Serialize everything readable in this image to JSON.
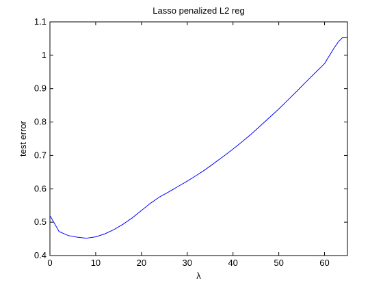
{
  "chart_data": {
    "type": "line",
    "title": "Lasso penalized L2 reg",
    "xlabel": "λ",
    "ylabel": "test error",
    "xlim": [
      0,
      65
    ],
    "ylim": [
      0.4,
      1.1
    ],
    "xticks": [
      0,
      10,
      20,
      30,
      40,
      50,
      60
    ],
    "yticks": [
      0.4,
      0.5,
      0.6,
      0.7,
      0.8,
      0.9,
      1,
      1.1
    ],
    "xtick_labels": [
      "0",
      "10",
      "20",
      "30",
      "40",
      "50",
      "60"
    ],
    "ytick_labels": [
      "0.4",
      "0.5",
      "0.6",
      "0.7",
      "0.8",
      "0.9",
      "1",
      "1.1"
    ],
    "grid": false,
    "line_color": "#0000ff",
    "axes_color": "#000000",
    "series": [
      {
        "x": [
          0,
          2,
          4,
          6,
          8,
          10,
          12,
          14,
          16,
          18,
          20,
          22,
          24,
          26,
          28,
          30,
          32,
          34,
          36,
          38,
          40,
          42,
          44,
          46,
          48,
          50,
          52,
          54,
          56,
          58,
          60,
          62,
          63,
          64,
          65
        ],
        "y": [
          0.52,
          0.472,
          0.46,
          0.455,
          0.452,
          0.456,
          0.465,
          0.478,
          0.494,
          0.513,
          0.535,
          0.557,
          0.576,
          0.591,
          0.607,
          0.623,
          0.64,
          0.658,
          0.678,
          0.698,
          0.719,
          0.741,
          0.764,
          0.789,
          0.814,
          0.839,
          0.866,
          0.893,
          0.921,
          0.948,
          0.975,
          1.02,
          1.04,
          1.054,
          1.054
        ]
      }
    ]
  }
}
